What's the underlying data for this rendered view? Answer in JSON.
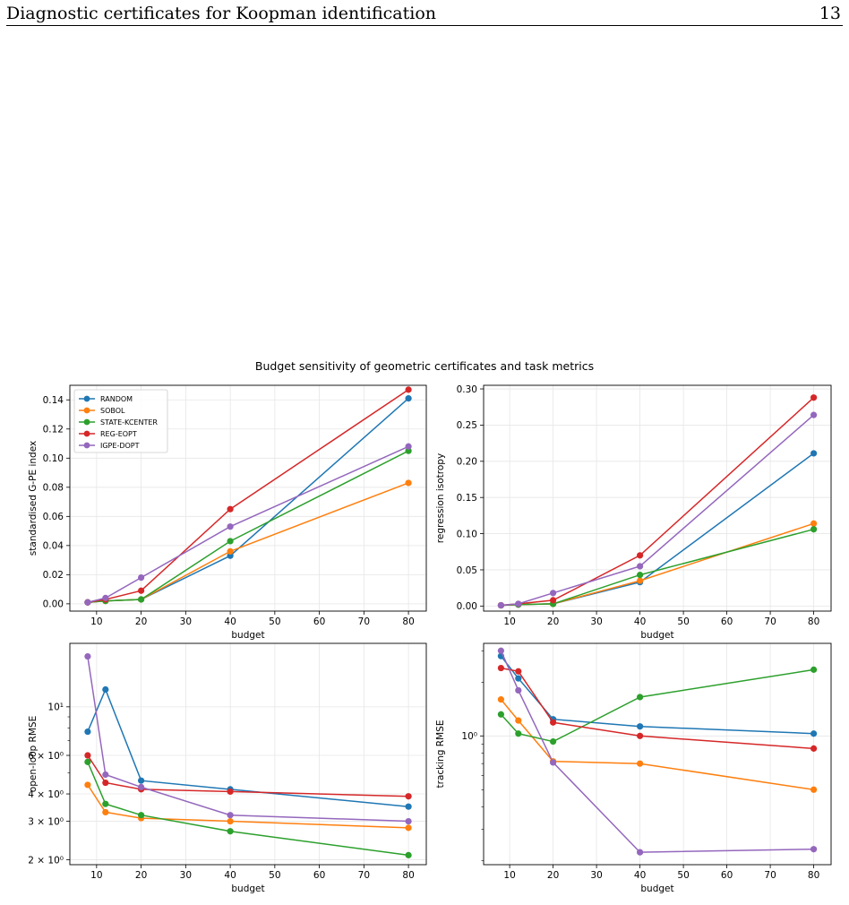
{
  "header": {
    "title": "Diagnostic certificates for Koopman identification",
    "page_number": "13"
  },
  "figure": {
    "suptitle": "Budget sensitivity of geometric certificates and task metrics"
  },
  "colors": {
    "RANDOM": "#1f77b4",
    "SOBOL": "#ff7f0e",
    "STATE-KCENTER": "#2ca02c",
    "REG-EOPT": "#d62728",
    "IGPE-DOPT": "#9467bd"
  },
  "chart_data": [
    {
      "type": "line",
      "xlabel": "budget",
      "ylabel": "standardised G-PE index",
      "x": [
        8,
        12,
        20,
        40,
        80
      ],
      "xlim": [
        4,
        84
      ],
      "ylim": [
        -0.005,
        0.15
      ],
      "xticks": [
        10,
        20,
        30,
        40,
        50,
        60,
        70,
        80
      ],
      "yticks": [
        0.0,
        0.02,
        0.04,
        0.06,
        0.08,
        0.1,
        0.12,
        0.14
      ],
      "yticklabels": [
        "0.00",
        "0.02",
        "0.04",
        "0.06",
        "0.08",
        "0.10",
        "0.12",
        "0.14"
      ],
      "scale": "linear",
      "grid": true,
      "legend": "top-left",
      "series": [
        {
          "name": "RANDOM",
          "color": "#1f77b4",
          "values": [
            0.001,
            0.002,
            0.003,
            0.033,
            0.141
          ]
        },
        {
          "name": "SOBOL",
          "color": "#ff7f0e",
          "values": [
            0.001,
            0.002,
            0.003,
            0.036,
            0.083
          ]
        },
        {
          "name": "STATE-KCENTER",
          "color": "#2ca02c",
          "values": [
            0.001,
            0.002,
            0.003,
            0.043,
            0.105
          ]
        },
        {
          "name": "REG-EOPT",
          "color": "#d62728",
          "values": [
            0.001,
            0.003,
            0.009,
            0.065,
            0.147
          ]
        },
        {
          "name": "IGPE-DOPT",
          "color": "#9467bd",
          "values": [
            0.001,
            0.004,
            0.018,
            0.053,
            0.108
          ]
        }
      ]
    },
    {
      "type": "line",
      "xlabel": "budget",
      "ylabel": "regression isotropy",
      "x": [
        8,
        12,
        20,
        40,
        80
      ],
      "xlim": [
        4,
        84
      ],
      "ylim": [
        -0.007,
        0.305
      ],
      "xticks": [
        10,
        20,
        30,
        40,
        50,
        60,
        70,
        80
      ],
      "yticks": [
        0.0,
        0.05,
        0.1,
        0.15,
        0.2,
        0.25,
        0.3
      ],
      "yticklabels": [
        "0.00",
        "0.05",
        "0.10",
        "0.15",
        "0.20",
        "0.25",
        "0.30"
      ],
      "scale": "linear",
      "grid": true,
      "series": [
        {
          "name": "RANDOM",
          "color": "#1f77b4",
          "values": [
            0.001,
            0.002,
            0.003,
            0.033,
            0.211
          ]
        },
        {
          "name": "SOBOL",
          "color": "#ff7f0e",
          "values": [
            0.001,
            0.002,
            0.003,
            0.035,
            0.114
          ]
        },
        {
          "name": "STATE-KCENTER",
          "color": "#2ca02c",
          "values": [
            0.001,
            0.002,
            0.003,
            0.043,
            0.106
          ]
        },
        {
          "name": "REG-EOPT",
          "color": "#d62728",
          "values": [
            0.001,
            0.003,
            0.008,
            0.07,
            0.288
          ]
        },
        {
          "name": "IGPE-DOPT",
          "color": "#9467bd",
          "values": [
            0.001,
            0.003,
            0.018,
            0.055,
            0.264
          ]
        }
      ]
    },
    {
      "type": "line",
      "xlabel": "budget",
      "ylabel": "open-loop RMSE",
      "x": [
        8,
        12,
        20,
        40,
        80
      ],
      "xlim": [
        4,
        84
      ],
      "ylim": [
        1.9,
        19.5
      ],
      "xticks": [
        10,
        20,
        30,
        40,
        50,
        60,
        70,
        80
      ],
      "yticks": [
        2,
        3,
        4,
        6,
        10
      ],
      "yticklabels": [
        "2 × 10⁰",
        "3 × 10⁰",
        "4 × 10⁰",
        "6 × 10⁰",
        "10¹"
      ],
      "yminor": [
        5,
        7,
        8,
        9
      ],
      "scale": "log",
      "grid": true,
      "series": [
        {
          "name": "RANDOM",
          "color": "#1f77b4",
          "values": [
            7.7,
            12.0,
            4.6,
            4.2,
            3.5
          ]
        },
        {
          "name": "SOBOL",
          "color": "#ff7f0e",
          "values": [
            4.4,
            3.3,
            3.1,
            3.0,
            2.8
          ]
        },
        {
          "name": "STATE-KCENTER",
          "color": "#2ca02c",
          "values": [
            5.6,
            3.6,
            3.2,
            2.7,
            2.1
          ]
        },
        {
          "name": "REG-EOPT",
          "color": "#d62728",
          "values": [
            6.0,
            4.5,
            4.2,
            4.1,
            3.9
          ]
        },
        {
          "name": "IGPE-DOPT",
          "color": "#9467bd",
          "values": [
            17.0,
            4.9,
            4.3,
            3.2,
            3.0
          ]
        }
      ]
    },
    {
      "type": "line",
      "xlabel": "budget",
      "ylabel": "tracking RMSE",
      "x": [
        8,
        12,
        20,
        40,
        80
      ],
      "xlim": [
        4,
        84
      ],
      "ylim": [
        0.19,
        3.3
      ],
      "xticks": [
        10,
        20,
        30,
        40,
        50,
        60,
        70,
        80
      ],
      "yticks": [
        1
      ],
      "yticklabels": [
        "10⁰"
      ],
      "yminor": [
        0.2,
        0.3,
        0.4,
        0.5,
        0.6,
        0.7,
        0.8,
        0.9,
        2,
        3
      ],
      "scale": "log",
      "grid": true,
      "series": [
        {
          "name": "RANDOM",
          "color": "#1f77b4",
          "values": [
            2.8,
            2.1,
            1.24,
            1.13,
            1.03
          ]
        },
        {
          "name": "SOBOL",
          "color": "#ff7f0e",
          "values": [
            1.6,
            1.22,
            0.72,
            0.7,
            0.5
          ]
        },
        {
          "name": "STATE-KCENTER",
          "color": "#2ca02c",
          "values": [
            1.32,
            1.03,
            0.93,
            1.65,
            2.35
          ]
        },
        {
          "name": "REG-EOPT",
          "color": "#d62728",
          "values": [
            2.4,
            2.3,
            1.19,
            1.0,
            0.85
          ]
        },
        {
          "name": "IGPE-DOPT",
          "color": "#9467bd",
          "values": [
            3.0,
            1.8,
            0.71,
            0.223,
            0.232
          ]
        }
      ]
    }
  ]
}
